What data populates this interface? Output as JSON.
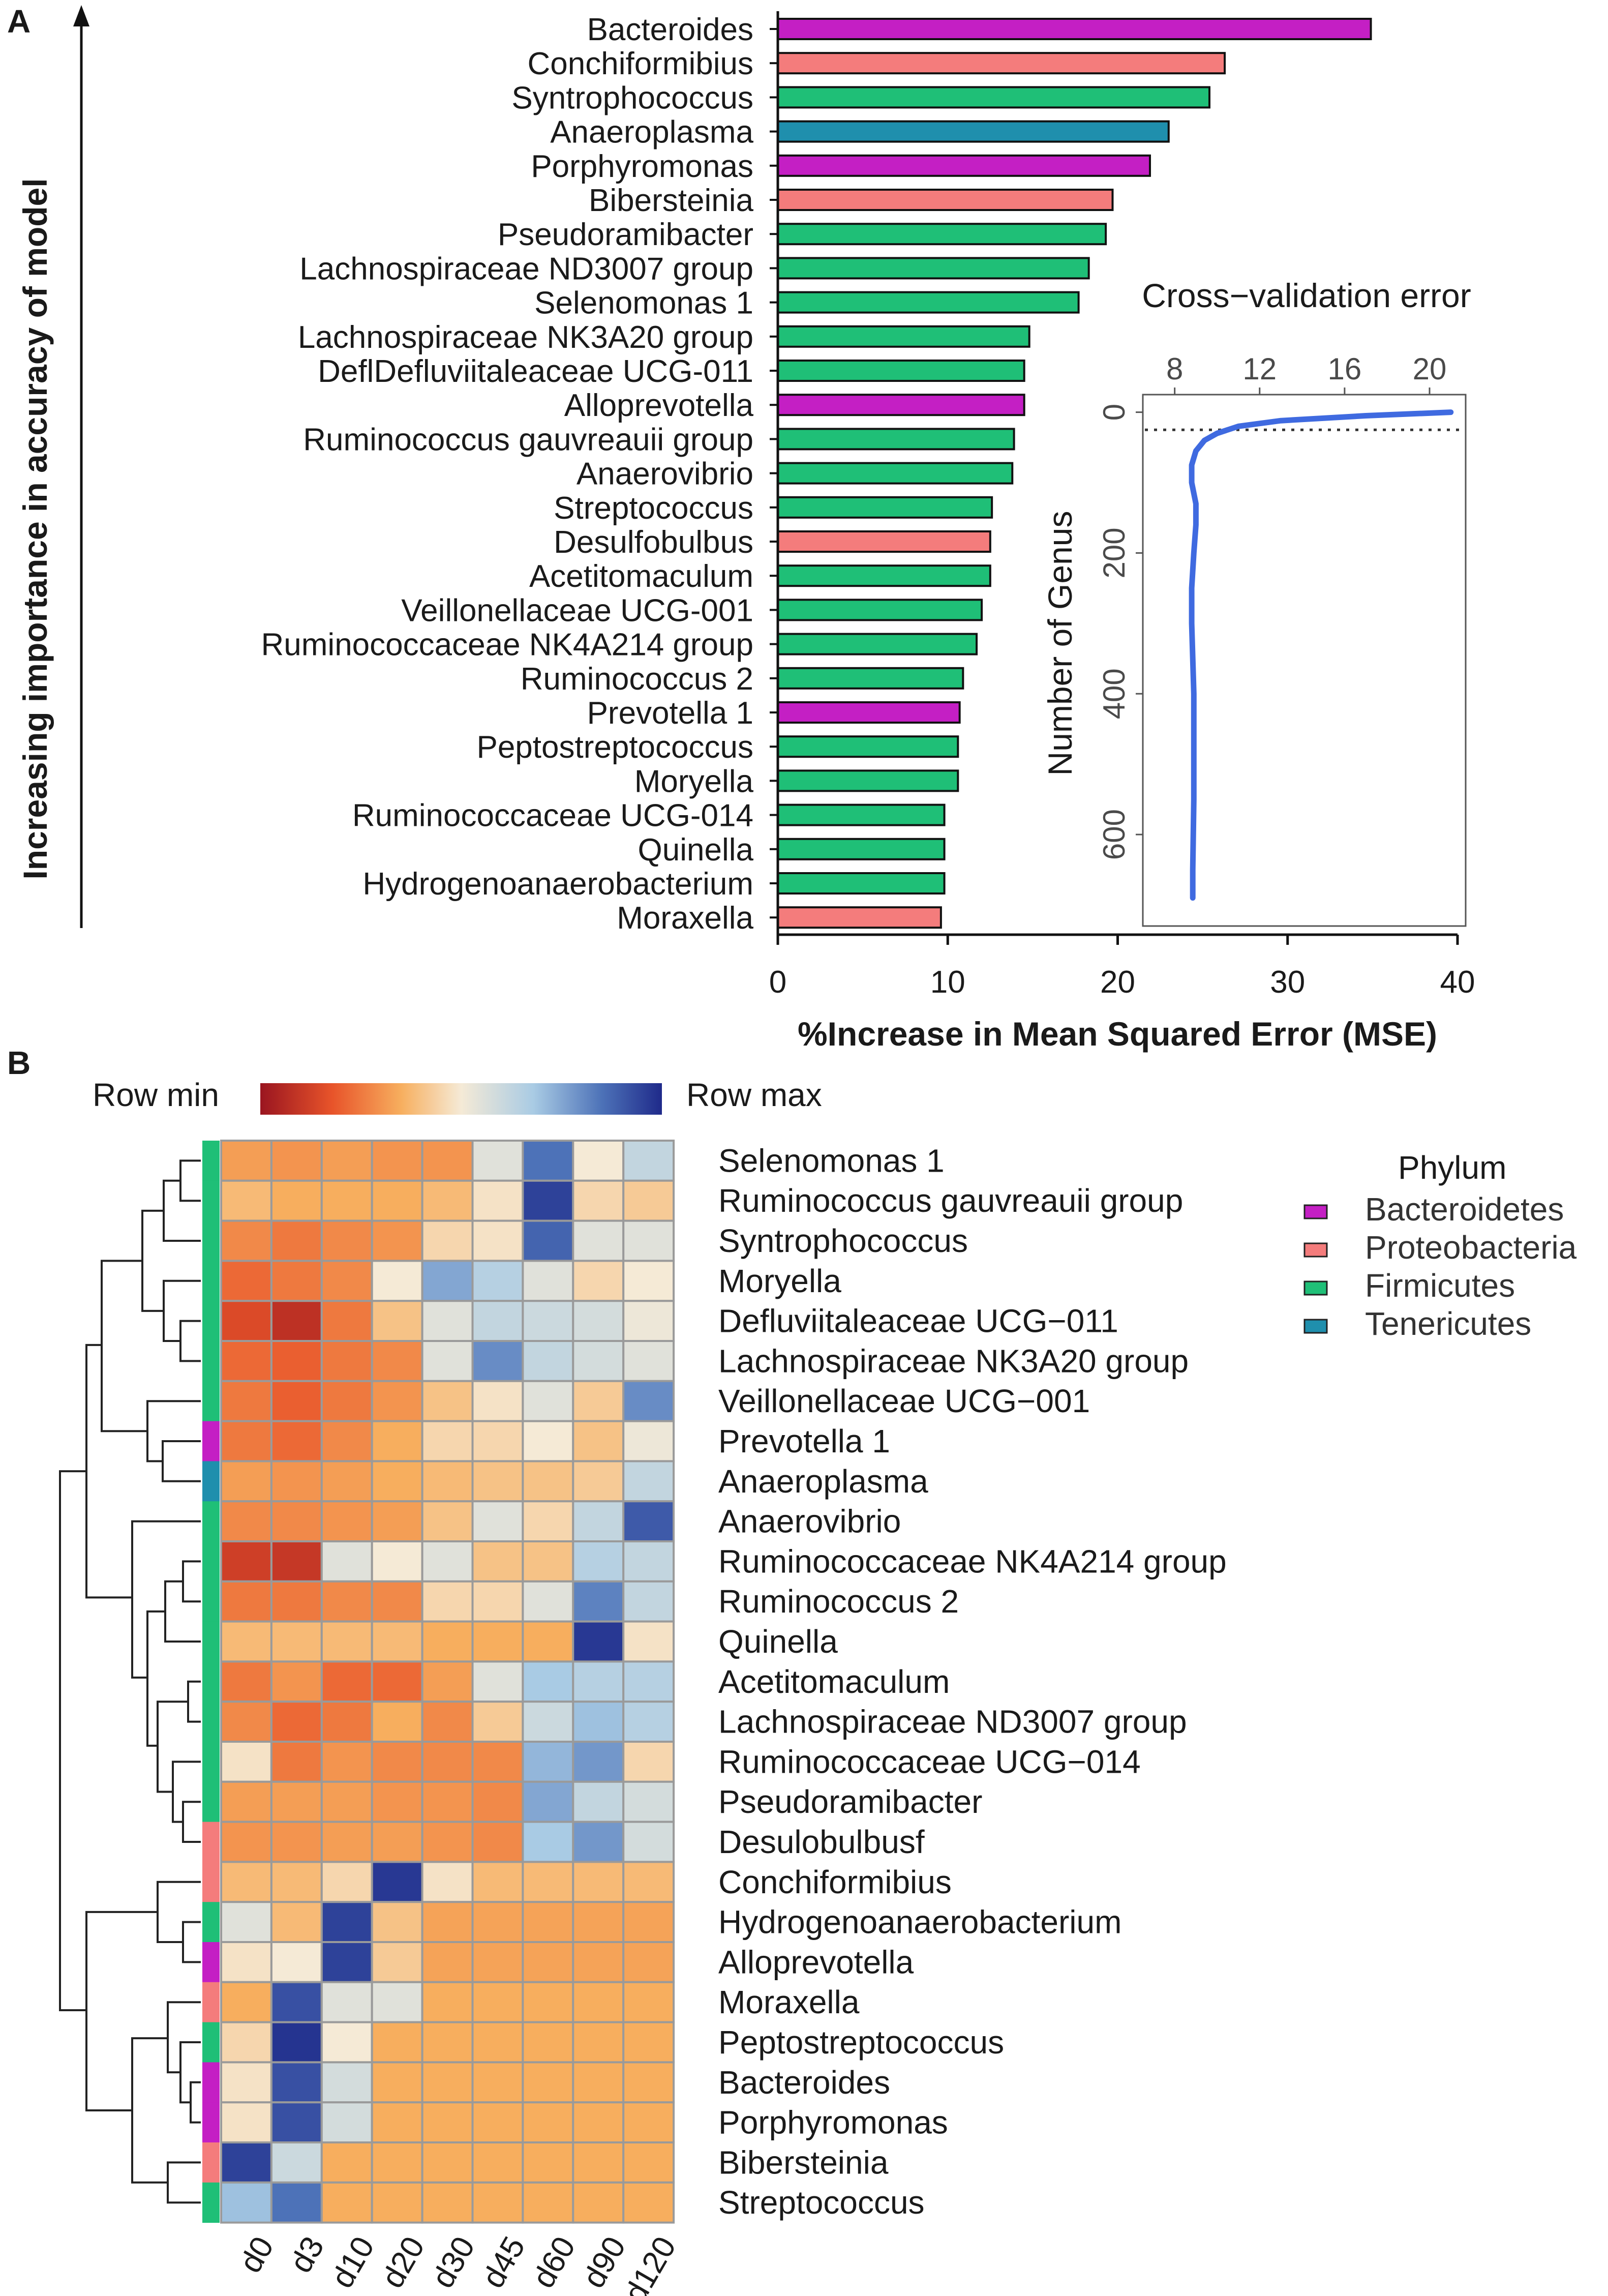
{
  "panel_labels": {
    "a": "A",
    "b": "B"
  },
  "colors": {
    "Bacteroidetes": "#c41fc4",
    "Proteobacteria": "#f47c7c",
    "Firmicutes": "#1fbf77",
    "Tenericutes": "#1f8fad"
  },
  "chart_data": [
    {
      "type": "bar",
      "orientation": "horizontal",
      "title": "",
      "xlabel": "%Increase in Mean Squared Error (MSE)",
      "ylabel": "Increasing importance in accuracy of model",
      "xlim": [
        0,
        40
      ],
      "xticks": [
        "0",
        "10",
        "20",
        "30",
        "40"
      ],
      "categories": [
        "Bacteroides",
        "Conchiformibius",
        "Syntrophococcus",
        "Anaeroplasma",
        "Porphyromonas",
        "Bibersteinia",
        "Pseudoramibacter",
        "Lachnospiraceae ND3007 group",
        "Selenomonas 1",
        "Lachnospiraceae NK3A20 group",
        "DeflDefluviitaleaceae UCG-011",
        "Alloprevotella",
        "Ruminococcus gauvreauii group",
        "Anaerovibrio",
        "Streptococcus",
        "Desulfobulbus",
        "Acetitomaculum",
        "Veillonellaceae UCG-001",
        "Ruminococcaceae NK4A214 group",
        "Ruminococcus 2",
        "Prevotella 1",
        "Peptostreptococcus",
        "Moryella",
        "Ruminococcaceae UCG-014",
        "Quinella",
        "Hydrogenoanaerobacterium",
        "Moraxella"
      ],
      "values": [
        34.9,
        26.3,
        25.4,
        23.0,
        21.9,
        19.7,
        19.3,
        18.3,
        17.7,
        14.8,
        14.5,
        14.5,
        13.9,
        13.8,
        12.6,
        12.5,
        12.5,
        12.0,
        11.7,
        10.9,
        10.7,
        10.6,
        10.6,
        9.8,
        9.8,
        9.8,
        9.6
      ],
      "phylum": [
        "Bacteroidetes",
        "Proteobacteria",
        "Firmicutes",
        "Tenericutes",
        "Bacteroidetes",
        "Proteobacteria",
        "Firmicutes",
        "Firmicutes",
        "Firmicutes",
        "Firmicutes",
        "Firmicutes",
        "Bacteroidetes",
        "Firmicutes",
        "Firmicutes",
        "Firmicutes",
        "Proteobacteria",
        "Firmicutes",
        "Firmicutes",
        "Firmicutes",
        "Firmicutes",
        "Bacteroidetes",
        "Firmicutes",
        "Firmicutes",
        "Firmicutes",
        "Firmicutes",
        "Firmicutes",
        "Proteobacteria"
      ]
    },
    {
      "type": "line",
      "title": "Cross−validation error",
      "ylabel": "Number of Genus",
      "xlim": [
        6.5,
        21.7
      ],
      "ylim": [
        -25,
        730
      ],
      "xticks": [
        "8",
        "12",
        "16",
        "20"
      ],
      "yticks": [
        "0",
        "200",
        "400",
        "600"
      ],
      "x": [
        21.0,
        17.0,
        13.0,
        11.0,
        10.0,
        9.4,
        9.0,
        8.8,
        8.8,
        9.0,
        9.0,
        8.9,
        8.8,
        8.8,
        8.85,
        8.9,
        8.9,
        8.9,
        8.85,
        8.85
      ],
      "y": [
        0,
        5,
        12,
        20,
        30,
        40,
        55,
        75,
        100,
        130,
        160,
        200,
        250,
        300,
        350,
        400,
        450,
        550,
        650,
        690
      ],
      "reference_line_y": 25
    },
    {
      "type": "heatmap",
      "title": "",
      "columns": [
        "d0",
        "d3",
        "d10",
        "d20",
        "d30",
        "d45",
        "d60",
        "d90",
        "d120"
      ],
      "rows": [
        "Selenomonas 1",
        "Ruminococcus gauvreauii group",
        "Syntrophococcus",
        "Moryella",
        "Defluviitaleaceae UCG−011",
        "Lachnospiraceae NK3A20 group",
        "Veillonellaceae UCG−001",
        "Prevotella 1",
        "Anaeroplasma",
        "Anaerovibrio",
        "Ruminococcaceae NK4A214 group",
        "Ruminococcus 2",
        "Quinella",
        "Acetitomaculum",
        "Lachnospiraceae ND3007 group",
        "Ruminococcaceae UCG−014",
        "Pseudoramibacter",
        "Desulobulbusf",
        "Conchiformibius",
        "Hydrogenoanaerobacterium",
        "Alloprevotella",
        "Moraxella",
        "Peptostreptococcus",
        "Bacteroides",
        "Porphyromonas",
        "Bibersteinia",
        "Streptococcus"
      ],
      "row_phylum": [
        "Firmicutes",
        "Firmicutes",
        "Firmicutes",
        "Firmicutes",
        "Firmicutes",
        "Firmicutes",
        "Firmicutes",
        "Bacteroidetes",
        "Tenericutes",
        "Firmicutes",
        "Firmicutes",
        "Firmicutes",
        "Firmicutes",
        "Firmicutes",
        "Firmicutes",
        "Firmicutes",
        "Firmicutes",
        "Proteobacteria",
        "Proteobacteria",
        "Firmicutes",
        "Bacteroidetes",
        "Proteobacteria",
        "Firmicutes",
        "Bacteroidetes",
        "Bacteroidetes",
        "Proteobacteria",
        "Firmicutes"
      ],
      "values": [
        [
          0.32,
          0.3,
          0.32,
          0.3,
          0.3,
          0.55,
          0.85,
          0.5,
          0.62
        ],
        [
          0.38,
          0.35,
          0.35,
          0.35,
          0.38,
          0.48,
          0.95,
          0.45,
          0.42
        ],
        [
          0.28,
          0.25,
          0.28,
          0.3,
          0.45,
          0.48,
          0.88,
          0.55,
          0.55
        ],
        [
          0.22,
          0.25,
          0.28,
          0.5,
          0.75,
          0.65,
          0.55,
          0.45,
          0.5
        ],
        [
          0.15,
          0.08,
          0.25,
          0.4,
          0.55,
          0.62,
          0.6,
          0.58,
          0.52
        ],
        [
          0.22,
          0.2,
          0.25,
          0.28,
          0.55,
          0.8,
          0.62,
          0.58,
          0.55
        ],
        [
          0.25,
          0.2,
          0.25,
          0.3,
          0.4,
          0.48,
          0.55,
          0.42,
          0.8
        ],
        [
          0.25,
          0.22,
          0.28,
          0.35,
          0.45,
          0.45,
          0.5,
          0.4,
          0.52
        ],
        [
          0.32,
          0.3,
          0.32,
          0.35,
          0.38,
          0.4,
          0.4,
          0.42,
          0.62
        ],
        [
          0.28,
          0.28,
          0.3,
          0.32,
          0.4,
          0.55,
          0.45,
          0.62,
          0.9
        ],
        [
          0.12,
          0.1,
          0.55,
          0.5,
          0.55,
          0.4,
          0.4,
          0.65,
          0.62
        ],
        [
          0.25,
          0.25,
          0.28,
          0.28,
          0.45,
          0.45,
          0.55,
          0.82,
          0.62
        ],
        [
          0.38,
          0.38,
          0.38,
          0.38,
          0.35,
          0.35,
          0.35,
          0.97,
          0.48
        ],
        [
          0.25,
          0.3,
          0.22,
          0.22,
          0.32,
          0.55,
          0.68,
          0.65,
          0.65
        ],
        [
          0.28,
          0.22,
          0.25,
          0.35,
          0.28,
          0.42,
          0.6,
          0.7,
          0.65
        ],
        [
          0.48,
          0.25,
          0.3,
          0.28,
          0.28,
          0.28,
          0.72,
          0.78,
          0.45
        ],
        [
          0.32,
          0.32,
          0.32,
          0.3,
          0.3,
          0.28,
          0.75,
          0.62,
          0.58
        ],
        [
          0.3,
          0.3,
          0.32,
          0.32,
          0.3,
          0.28,
          0.68,
          0.78,
          0.58
        ],
        [
          0.38,
          0.38,
          0.45,
          0.97,
          0.48,
          0.38,
          0.38,
          0.38,
          0.38
        ],
        [
          0.55,
          0.38,
          0.95,
          0.4,
          0.33,
          0.33,
          0.33,
          0.33,
          0.33
        ],
        [
          0.48,
          0.5,
          0.95,
          0.42,
          0.33,
          0.33,
          0.33,
          0.33,
          0.33
        ],
        [
          0.35,
          0.92,
          0.55,
          0.55,
          0.35,
          0.35,
          0.35,
          0.35,
          0.35
        ],
        [
          0.45,
          0.98,
          0.5,
          0.35,
          0.35,
          0.35,
          0.35,
          0.35,
          0.35
        ],
        [
          0.48,
          0.92,
          0.58,
          0.35,
          0.35,
          0.35,
          0.35,
          0.35,
          0.35
        ],
        [
          0.48,
          0.92,
          0.58,
          0.35,
          0.35,
          0.35,
          0.35,
          0.35,
          0.35
        ],
        [
          0.95,
          0.6,
          0.35,
          0.35,
          0.35,
          0.35,
          0.35,
          0.35,
          0.35
        ],
        [
          0.7,
          0.85,
          0.35,
          0.35,
          0.35,
          0.35,
          0.35,
          0.35,
          0.35
        ]
      ],
      "color_scale": {
        "min_label": "Row min",
        "max_label": "Row max"
      },
      "legend": {
        "title": "Phylum",
        "items": [
          "Bacteroidetes",
          "Proteobacteria",
          "Firmicutes",
          "Tenericutes"
        ]
      }
    }
  ]
}
